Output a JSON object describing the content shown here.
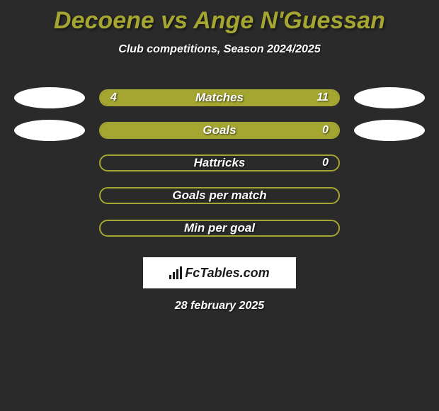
{
  "title": {
    "text": "Decoene vs Ange N'Guessan",
    "color": "#a5a631"
  },
  "subtitle": "Club competitions, Season 2024/2025",
  "chart": {
    "track_border_color": "#a5a631",
    "bar_color": "#a5a631",
    "bg_color": "#2a2a2a",
    "rows": [
      {
        "label": "Matches",
        "left_value": "4",
        "right_value": "11",
        "left_pct": 26.7,
        "right_pct": 73.3,
        "show_left_avatar": true,
        "show_right_avatar": true
      },
      {
        "label": "Goals",
        "left_value": "",
        "right_value": "0",
        "left_pct": 100,
        "right_pct": 0,
        "show_left_avatar": true,
        "show_right_avatar": true
      },
      {
        "label": "Hattricks",
        "left_value": "",
        "right_value": "0",
        "left_pct": 0,
        "right_pct": 0,
        "show_left_avatar": false,
        "show_right_avatar": false
      },
      {
        "label": "Goals per match",
        "left_value": "",
        "right_value": "",
        "left_pct": 0,
        "right_pct": 0,
        "show_left_avatar": false,
        "show_right_avatar": false
      },
      {
        "label": "Min per goal",
        "left_value": "",
        "right_value": "",
        "left_pct": 0,
        "right_pct": 0,
        "show_left_avatar": false,
        "show_right_avatar": false
      }
    ]
  },
  "logo": {
    "text": "FcTables.com"
  },
  "date": "28 february 2025"
}
